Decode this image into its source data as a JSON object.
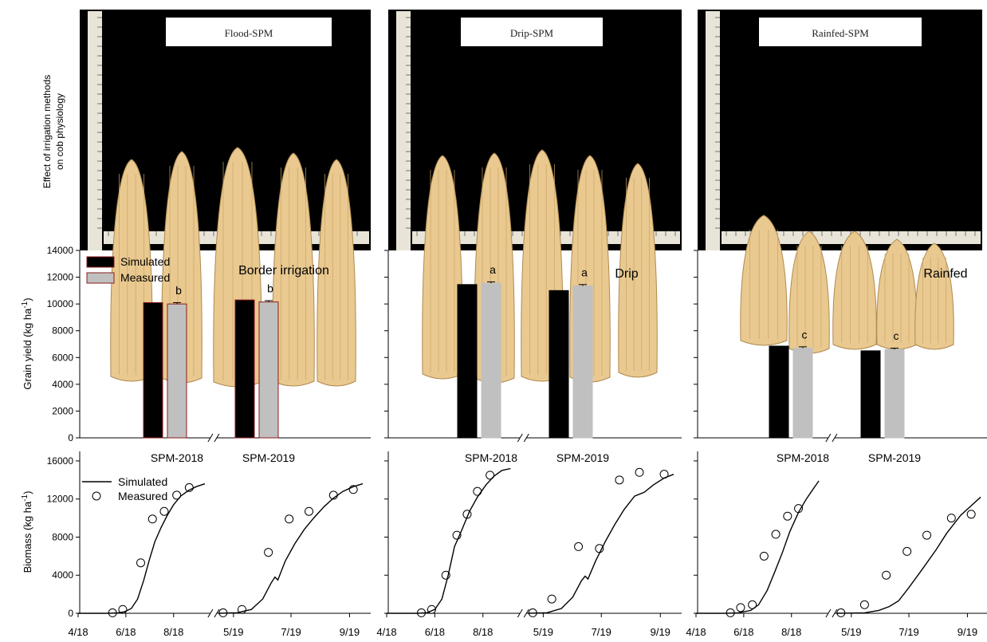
{
  "figure_ylabel": [
    "Effect of irrigation methods",
    "on cob physiology"
  ],
  "panels": [
    {
      "photo_label": "Flood-SPM",
      "treatment": "Border irrigation"
    },
    {
      "photo_label": "Drip-SPM",
      "treatment": "Drip"
    },
    {
      "photo_label": "Rainfed-SPM",
      "treatment": "Rainfed"
    }
  ],
  "colors": {
    "simulated": "#000000",
    "measured": "#c0c0c0",
    "measured_border": "#8b1a1a",
    "photo_bg": "#000000",
    "cob": "#e9c98f"
  },
  "chart_data": [
    {
      "type": "bar",
      "panel": "Border irrigation",
      "ylabel": "Grain yield (kg ha-1)",
      "ylim": [
        0,
        14000
      ],
      "yticks": [
        0,
        2000,
        4000,
        6000,
        8000,
        10000,
        12000,
        14000
      ],
      "categories": [
        "SPM-2018",
        "SPM-2019"
      ],
      "legend_position": "top-left",
      "series": [
        {
          "name": "Simulated",
          "values": [
            10100,
            10300
          ]
        },
        {
          "name": "Measured",
          "values": [
            10000,
            10150
          ],
          "errors": [
            100,
            100
          ],
          "letters": [
            "b",
            "b"
          ]
        }
      ]
    },
    {
      "type": "bar",
      "panel": "Drip",
      "ylim": [
        0,
        14000
      ],
      "categories": [
        "SPM-2018",
        "SPM-2019"
      ],
      "series": [
        {
          "name": "Simulated",
          "values": [
            11450,
            11000
          ]
        },
        {
          "name": "Measured",
          "values": [
            11550,
            11350
          ],
          "errors": [
            100,
            100
          ],
          "letters": [
            "a",
            "a"
          ]
        }
      ]
    },
    {
      "type": "bar",
      "panel": "Rainfed",
      "ylim": [
        0,
        14000
      ],
      "categories": [
        "SPM-2018",
        "SPM-2019"
      ],
      "series": [
        {
          "name": "Simulated",
          "values": [
            6850,
            6500
          ]
        },
        {
          "name": "Measured",
          "values": [
            6700,
            6600
          ],
          "errors": [
            100,
            100
          ],
          "letters": [
            "c",
            "c"
          ]
        }
      ]
    },
    {
      "type": "line",
      "panel": "Border irrigation",
      "ylabel": "Biomass (kg ha-1)",
      "ylim": [
        0,
        17000
      ],
      "yticks": [
        0,
        4000,
        8000,
        12000,
        16000
      ],
      "xticks": [
        "4/18",
        "6/18",
        "8/18",
        "5/19",
        "7/19",
        "9/19"
      ],
      "legend_position": "top-left",
      "segments": [
        {
          "year": 2018,
          "xlim": [
            "2018-04-01",
            "2018-09-15"
          ],
          "simulated": [
            [
              "2018-04-01",
              0
            ],
            [
              "2018-05-10",
              0
            ],
            [
              "2018-05-22",
              40
            ],
            [
              "2018-05-30",
              150
            ],
            [
              "2018-06-08",
              500
            ],
            [
              "2018-06-16",
              1500
            ],
            [
              "2018-06-24",
              3500
            ],
            [
              "2018-07-01",
              5600
            ],
            [
              "2018-07-08",
              7500
            ],
            [
              "2018-07-16",
              9000
            ],
            [
              "2018-07-24",
              10300
            ],
            [
              "2018-08-01",
              11400
            ],
            [
              "2018-08-10",
              12300
            ],
            [
              "2018-08-20",
              12900
            ],
            [
              "2018-08-30",
              13300
            ],
            [
              "2018-09-10",
              13600
            ]
          ],
          "measured": [
            [
              "2018-05-15",
              50
            ],
            [
              "2018-05-28",
              400
            ],
            [
              "2018-06-20",
              5300
            ],
            [
              "2018-07-05",
              9900
            ],
            [
              "2018-07-20",
              10700
            ],
            [
              "2018-08-05",
              12400
            ],
            [
              "2018-08-21",
              13200
            ]
          ]
        },
        {
          "year": 2019,
          "xlim": [
            "2019-04-15",
            "2019-09-15"
          ],
          "simulated": [
            [
              "2019-04-15",
              0
            ],
            [
              "2019-05-05",
              60
            ],
            [
              "2019-05-20",
              400
            ],
            [
              "2019-06-01",
              1500
            ],
            [
              "2019-06-10",
              3200
            ],
            [
              "2019-06-14",
              3800
            ],
            [
              "2019-06-17",
              3500
            ],
            [
              "2019-06-25",
              5500
            ],
            [
              "2019-07-05",
              7300
            ],
            [
              "2019-07-15",
              8800
            ],
            [
              "2019-07-25",
              10000
            ],
            [
              "2019-08-05",
              11200
            ],
            [
              "2019-08-15",
              12100
            ],
            [
              "2019-08-25",
              12800
            ],
            [
              "2019-09-05",
              13300
            ],
            [
              "2019-09-15",
              13600
            ]
          ],
          "measured": [
            [
              "2019-04-20",
              50
            ],
            [
              "2019-05-10",
              400
            ],
            [
              "2019-06-07",
              6400
            ],
            [
              "2019-06-29",
              9900
            ],
            [
              "2019-07-20",
              10700
            ],
            [
              "2019-08-15",
              12400
            ],
            [
              "2019-09-05",
              13000
            ]
          ]
        }
      ]
    },
    {
      "type": "line",
      "panel": "Drip",
      "ylim": [
        0,
        17000
      ],
      "segments": [
        {
          "year": 2018,
          "xlim": [
            "2018-04-01",
            "2018-09-15"
          ],
          "simulated": [
            [
              "2018-04-01",
              0
            ],
            [
              "2018-05-10",
              0
            ],
            [
              "2018-05-22",
              60
            ],
            [
              "2018-06-01",
              400
            ],
            [
              "2018-06-10",
              1500
            ],
            [
              "2018-06-18",
              4000
            ],
            [
              "2018-06-26",
              7000
            ],
            [
              "2018-07-05",
              8700
            ],
            [
              "2018-07-15",
              10700
            ],
            [
              "2018-07-25",
              12200
            ],
            [
              "2018-08-05",
              13500
            ],
            [
              "2018-08-15",
              14400
            ],
            [
              "2018-08-25",
              15000
            ],
            [
              "2018-09-05",
              15200
            ]
          ],
          "measured": [
            [
              "2018-05-15",
              50
            ],
            [
              "2018-05-28",
              400
            ],
            [
              "2018-06-15",
              4000
            ],
            [
              "2018-06-29",
              8200
            ],
            [
              "2018-07-12",
              10400
            ],
            [
              "2018-07-25",
              12800
            ],
            [
              "2018-08-10",
              14500
            ]
          ]
        },
        {
          "year": 2019,
          "xlim": [
            "2019-04-15",
            "2019-09-15"
          ],
          "simulated": [
            [
              "2019-04-15",
              0
            ],
            [
              "2019-05-05",
              60
            ],
            [
              "2019-05-20",
              500
            ],
            [
              "2019-06-01",
              1700
            ],
            [
              "2019-06-10",
              3400
            ],
            [
              "2019-06-14",
              3900
            ],
            [
              "2019-06-17",
              3600
            ],
            [
              "2019-06-25",
              5500
            ],
            [
              "2019-07-05",
              7500
            ],
            [
              "2019-07-15",
              9300
            ],
            [
              "2019-07-25",
              10900
            ],
            [
              "2019-08-05",
              12300
            ],
            [
              "2019-08-15",
              12700
            ],
            [
              "2019-08-25",
              13500
            ],
            [
              "2019-09-05",
              14200
            ],
            [
              "2019-09-15",
              14600
            ]
          ],
          "measured": [
            [
              "2019-04-20",
              50
            ],
            [
              "2019-05-10",
              1500
            ],
            [
              "2019-06-07",
              7000
            ],
            [
              "2019-06-29",
              6800
            ],
            [
              "2019-07-20",
              14000
            ],
            [
              "2019-08-10",
              14800
            ],
            [
              "2019-09-05",
              14600
            ]
          ]
        }
      ]
    },
    {
      "type": "line",
      "panel": "Rainfed",
      "ylim": [
        0,
        17000
      ],
      "segments": [
        {
          "year": 2018,
          "xlim": [
            "2018-04-01",
            "2018-09-15"
          ],
          "simulated": [
            [
              "2018-04-01",
              0
            ],
            [
              "2018-05-10",
              0
            ],
            [
              "2018-05-25",
              50
            ],
            [
              "2018-06-10",
              300
            ],
            [
              "2018-06-20",
              900
            ],
            [
              "2018-07-01",
              2400
            ],
            [
              "2018-07-10",
              4200
            ],
            [
              "2018-07-20",
              6300
            ],
            [
              "2018-07-30",
              8600
            ],
            [
              "2018-08-10",
              10600
            ],
            [
              "2018-08-20",
              12000
            ],
            [
              "2018-08-30",
              13200
            ],
            [
              "2018-09-05",
              13900
            ]
          ],
          "measured": [
            [
              "2018-05-15",
              50
            ],
            [
              "2018-05-28",
              600
            ],
            [
              "2018-06-12",
              900
            ],
            [
              "2018-06-27",
              6000
            ],
            [
              "2018-07-12",
              8300
            ],
            [
              "2018-07-27",
              10200
            ],
            [
              "2018-08-10",
              11000
            ]
          ]
        },
        {
          "year": 2019,
          "xlim": [
            "2019-04-15",
            "2019-09-15"
          ],
          "simulated": [
            [
              "2019-04-15",
              0
            ],
            [
              "2019-05-15",
              50
            ],
            [
              "2019-05-30",
              300
            ],
            [
              "2019-06-10",
              700
            ],
            [
              "2019-06-20",
              1300
            ],
            [
              "2019-07-01",
              2700
            ],
            [
              "2019-07-15",
              4600
            ],
            [
              "2019-07-30",
              6700
            ],
            [
              "2019-08-10",
              8400
            ],
            [
              "2019-08-25",
              10300
            ],
            [
              "2019-09-05",
              11300
            ],
            [
              "2019-09-15",
              12200
            ]
          ],
          "measured": [
            [
              "2019-04-20",
              50
            ],
            [
              "2019-05-15",
              900
            ],
            [
              "2019-06-07",
              4000
            ],
            [
              "2019-06-29",
              6500
            ],
            [
              "2019-07-20",
              8200
            ],
            [
              "2019-08-15",
              10000
            ],
            [
              "2019-09-05",
              10400
            ]
          ]
        }
      ]
    }
  ]
}
